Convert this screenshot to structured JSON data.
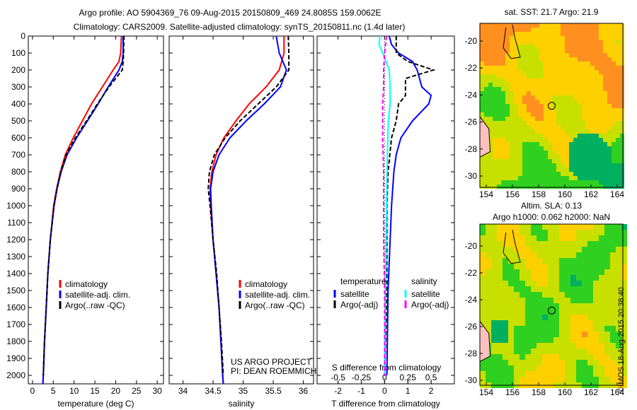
{
  "title_line1": "Argo profile: AO 5904369_76 09-Aug-2015 20150809_469 24.8085S 159.0062E",
  "title_line2": "Climatology: CARS2009. Satellite-adjusted climatology: synTS_20150811.nc (1.4d later)",
  "colors": {
    "climatology": "#ff0000",
    "satellite": "#0000ff",
    "argo": "#000000",
    "sal_sat": "#00ffff",
    "sal_argo": "#ff00ff"
  },
  "chart_data": [
    {
      "type": "line",
      "name": "temperature-profile",
      "xlabel": "temperature (deg C)",
      "ylabel": "depth",
      "xlim": [
        -1,
        31.5
      ],
      "ylim": [
        2050,
        0
      ],
      "xticks": [
        0,
        5,
        10,
        15,
        20,
        25,
        30
      ],
      "yticks": [
        0,
        100,
        200,
        300,
        400,
        500,
        600,
        700,
        800,
        900,
        1000,
        1100,
        1200,
        1300,
        1400,
        1500,
        1600,
        1700,
        1800,
        1900,
        2000
      ],
      "legend": [
        "climatology",
        "satellite-adj. clim.",
        "Argo(..raw -QC)"
      ],
      "series": [
        {
          "name": "climatology",
          "color": "#ff0000",
          "dash": false,
          "depth": [
            0,
            100,
            150,
            200,
            300,
            400,
            500,
            600,
            700,
            800,
            900,
            1000,
            1200,
            1400,
            1600,
            1800,
            2000,
            2050
          ],
          "values": [
            21.4,
            21.2,
            20.8,
            19.4,
            16.8,
            14.2,
            12.0,
            9.8,
            7.9,
            6.7,
            5.8,
            5.1,
            4.3,
            3.7,
            3.3,
            2.9,
            2.6,
            2.5
          ]
        },
        {
          "name": "satellite-adj. clim.",
          "color": "#0000ff",
          "dash": false,
          "depth": [
            0,
            100,
            150,
            200,
            300,
            400,
            500,
            600,
            700,
            800,
            900,
            1000,
            1200,
            1400,
            1600,
            1800,
            2000,
            2050
          ],
          "values": [
            21.8,
            21.8,
            21.6,
            20.8,
            18.2,
            15.8,
            13.2,
            10.6,
            8.3,
            6.9,
            5.9,
            5.2,
            4.3,
            3.7,
            3.3,
            2.9,
            2.6,
            2.5
          ]
        },
        {
          "name": "Argo(..raw -QC)",
          "color": "#000000",
          "dash": true,
          "depth": [
            0,
            100,
            150,
            200,
            300,
            400,
            500,
            600,
            700,
            800,
            900,
            1000,
            1200,
            1400,
            1600,
            1800,
            2000
          ],
          "values": [
            22.0,
            21.9,
            21.8,
            21.6,
            18.4,
            15.6,
            13.0,
            10.3,
            8.1,
            6.8,
            5.9,
            5.2,
            4.3,
            3.7,
            3.3,
            2.9,
            2.6
          ]
        }
      ]
    },
    {
      "type": "line",
      "name": "salinity-profile",
      "xlabel": "salinity",
      "xlim": [
        33.77,
        36.17
      ],
      "ylim": [
        2050,
        0
      ],
      "xticks": [
        34,
        34.5,
        35,
        35.5,
        36
      ],
      "legend": [
        "climatology",
        "satellite-adj. clim.",
        "Argo(..raw -QC)"
      ],
      "annotation": [
        "US ARGO PROJECT",
        "PI: DEAN ROEMMICH"
      ],
      "series": [
        {
          "name": "climatology",
          "color": "#ff0000",
          "dash": false,
          "depth": [
            0,
            100,
            200,
            300,
            400,
            500,
            600,
            700,
            800,
            900,
            1000,
            1200,
            1400,
            1600,
            1800,
            2000,
            2050
          ],
          "values": [
            35.68,
            35.68,
            35.6,
            35.38,
            35.1,
            34.88,
            34.68,
            34.55,
            34.48,
            34.45,
            34.46,
            34.5,
            34.55,
            34.6,
            34.63,
            34.66,
            34.67
          ]
        },
        {
          "name": "satellite-adj. clim.",
          "color": "#0000ff",
          "dash": false,
          "depth": [
            0,
            100,
            200,
            300,
            400,
            500,
            600,
            700,
            800,
            900,
            1000,
            1200,
            1400,
            1600,
            1800,
            2000,
            2050
          ],
          "values": [
            35.55,
            35.6,
            35.72,
            35.62,
            35.35,
            35.05,
            34.78,
            34.6,
            34.5,
            34.46,
            34.47,
            34.5,
            34.55,
            34.6,
            34.63,
            34.66,
            34.67
          ]
        },
        {
          "name": "Argo(..raw -QC)",
          "color": "#000000",
          "dash": true,
          "depth": [
            0,
            100,
            200,
            300,
            400,
            500,
            600,
            700,
            800,
            900,
            1000,
            1200,
            1400,
            1600,
            1800,
            2000
          ],
          "values": [
            35.75,
            35.76,
            35.76,
            35.55,
            35.25,
            34.95,
            34.7,
            34.52,
            34.44,
            34.42,
            34.45,
            34.5,
            34.56,
            34.6,
            34.64,
            34.67
          ]
        }
      ]
    },
    {
      "type": "line",
      "name": "difference-profile",
      "xlabel": "T difference from climatology",
      "x2label": "S difference from climatology",
      "xlim": [
        -2.9,
        3.0
      ],
      "ylim": [
        2050,
        0
      ],
      "xticks": [
        -2,
        -1,
        0,
        1,
        2
      ],
      "x2ticks": [
        "-0.5",
        "-0.25",
        "0",
        "0.25",
        "0.5"
      ],
      "legend_temperature": {
        "title": "temperature",
        "items": [
          "satellite",
          "Argo(-adj)"
        ]
      },
      "legend_salinity": {
        "title": "salinity",
        "items": [
          "satellite",
          "Argo(-adj)"
        ]
      },
      "series": [
        {
          "name": "temperature satellite",
          "color": "#0000ff",
          "dash": false,
          "depth": [
            0,
            50,
            100,
            150,
            200,
            300,
            350,
            400,
            500,
            600,
            700,
            800,
            1000,
            1500,
            2000
          ],
          "values": [
            0.2,
            0.3,
            0.6,
            1.2,
            1.4,
            1.6,
            2.0,
            1.9,
            1.2,
            0.7,
            0.5,
            0.4,
            0.3,
            0.15,
            0.1
          ]
        },
        {
          "name": "temperature Argo(-adj)",
          "color": "#000000",
          "dash": true,
          "depth": [
            0,
            100,
            150,
            200,
            250,
            350,
            400,
            500,
            600,
            800,
            1000,
            1500,
            2000
          ],
          "values": [
            0.5,
            0.5,
            1.0,
            2.1,
            0.9,
            0.9,
            0.6,
            0.5,
            0.3,
            0.15,
            0.1,
            0.1,
            0.0
          ]
        },
        {
          "name": "salinity satellite",
          "color": "#00ffff",
          "dash": false,
          "salinity": true,
          "depth": [
            0,
            50,
            100,
            200,
            300,
            400,
            500,
            700,
            1000,
            2000
          ],
          "values": [
            -0.05,
            -0.06,
            -0.02,
            0.05,
            0.06,
            0.06,
            0.04,
            0.03,
            0.02,
            0.0
          ]
        },
        {
          "name": "salinity Argo(-adj)",
          "color": "#ff00ff",
          "dash": true,
          "salinity": true,
          "depth": [
            0,
            100,
            200,
            300,
            400,
            600,
            800,
            1200,
            1500,
            2000
          ],
          "values": [
            0.02,
            0.0,
            -0.01,
            -0.01,
            -0.02,
            -0.02,
            -0.01,
            -0.01,
            0.0,
            0.0
          ]
        }
      ]
    },
    {
      "type": "heatmap",
      "name": "sst-map",
      "title": "sat. SST: 21.7  Argo: 21.9",
      "xlim": [
        153.5,
        164.5
      ],
      "ylim": [
        -31,
        -18.7
      ],
      "xticks": [
        154,
        156,
        158,
        160,
        162,
        164
      ],
      "yticks": [
        -20,
        -22,
        -24,
        -26,
        -28,
        -30
      ],
      "marker": {
        "lon": 159.0,
        "lat": -24.8
      }
    },
    {
      "type": "heatmap",
      "name": "sla-map",
      "title": "Altim. SLA: 0.13",
      "subtitle": "Argo h1000: 0.062 h2000: NaN",
      "xlim": [
        153.5,
        164.5
      ],
      "ylim": [
        -31,
        -18.4
      ],
      "xticks": [
        154,
        156,
        158,
        160,
        162,
        164
      ],
      "yticks": [
        -20,
        -22,
        -24,
        -26,
        -28,
        -30
      ],
      "marker": {
        "lon": 159.0,
        "lat": -24.8
      }
    }
  ],
  "footer_vertical": "©IMOS 18-Aug-2015 20:38:40"
}
